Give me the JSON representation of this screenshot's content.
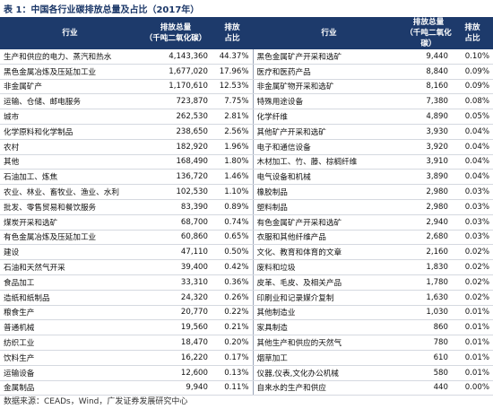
{
  "title": "表 1：中国各行业碳排放总量及占比（2017年）",
  "table": {
    "header": [
      "行业",
      "排放总量\n（千吨二氧化碳）",
      "排放\n占比",
      "行业",
      "排放总量\n（千吨二氧化碳）",
      "排放\n占比"
    ],
    "rows": [
      [
        "生产和供应的电力、蒸汽和热水",
        "4,143,360",
        "44.37%",
        "黑色金属矿产开采和选矿",
        "9,440",
        "0.10%"
      ],
      [
        "黑色金属冶炼及压延加工业",
        "1,677,020",
        "17.96%",
        "医疗和医药产品",
        "8,840",
        "0.09%"
      ],
      [
        "非金属矿产",
        "1,170,610",
        "12.53%",
        "非金属矿物开采和选矿",
        "8,160",
        "0.09%"
      ],
      [
        "运输、仓储、邮电服务",
        "723,870",
        "7.75%",
        "特殊用途设备",
        "7,380",
        "0.08%"
      ],
      [
        "城市",
        "262,530",
        "2.81%",
        "化学纤维",
        "4,890",
        "0.05%"
      ],
      [
        "化学原料和化学制品",
        "238,650",
        "2.56%",
        "其他矿产开采和选矿",
        "3,930",
        "0.04%"
      ],
      [
        "农村",
        "182,920",
        "1.96%",
        "电子和通信设备",
        "3,920",
        "0.04%"
      ],
      [
        "其他",
        "168,490",
        "1.80%",
        "木材加工、竹、藤、棕榈纤维",
        "3,910",
        "0.04%"
      ],
      [
        "石油加工、炼焦",
        "136,720",
        "1.46%",
        "电气设备和机械",
        "3,890",
        "0.04%"
      ],
      [
        "农业、林业、畜牧业、渔业、水利",
        "102,530",
        "1.10%",
        "橡胶制品",
        "2,980",
        "0.03%"
      ],
      [
        "批发、零售贸易和餐饮服务",
        "83,390",
        "0.89%",
        "塑料制品",
        "2,980",
        "0.03%"
      ],
      [
        "煤炭开采和选矿",
        "68,700",
        "0.74%",
        "有色金属矿产开采和选矿",
        "2,940",
        "0.03%"
      ],
      [
        "有色金属冶炼及压延加工业",
        "60,860",
        "0.65%",
        "衣服和其他纤维产品",
        "2,680",
        "0.03%"
      ],
      [
        "建设",
        "47,110",
        "0.50%",
        "文化、教育和体育的文章",
        "2,160",
        "0.02%"
      ],
      [
        "石油和天然气开采",
        "39,400",
        "0.42%",
        "废料和垃圾",
        "1,830",
        "0.02%"
      ],
      [
        "食品加工",
        "33,310",
        "0.36%",
        "皮革、毛皮、及相关产品",
        "1,780",
        "0.02%"
      ],
      [
        "造纸和纸制品",
        "24,320",
        "0.26%",
        "印刷业和记录媒介复制",
        "1,630",
        "0.02%"
      ],
      [
        "粮食生产",
        "20,770",
        "0.22%",
        "其他制造业",
        "1,030",
        "0.01%"
      ],
      [
        "普通机械",
        "19,560",
        "0.21%",
        "家具制造",
        "860",
        "0.01%"
      ],
      [
        "纺织工业",
        "18,470",
        "0.20%",
        "其他生产和供应的天然气",
        "780",
        "0.01%"
      ],
      [
        "饮料生产",
        "16,220",
        "0.17%",
        "烟草加工",
        "610",
        "0.01%"
      ],
      [
        "运输设备",
        "12,600",
        "0.13%",
        "仪器,仪表,文化办公机械",
        "580",
        "0.01%"
      ],
      [
        "金属制品",
        "9,940",
        "0.11%",
        "自来水的生产和供应",
        "440",
        "0.00%"
      ]
    ]
  },
  "source": "数据来源：CEADs，Wind，广发证券发展研究中心"
}
